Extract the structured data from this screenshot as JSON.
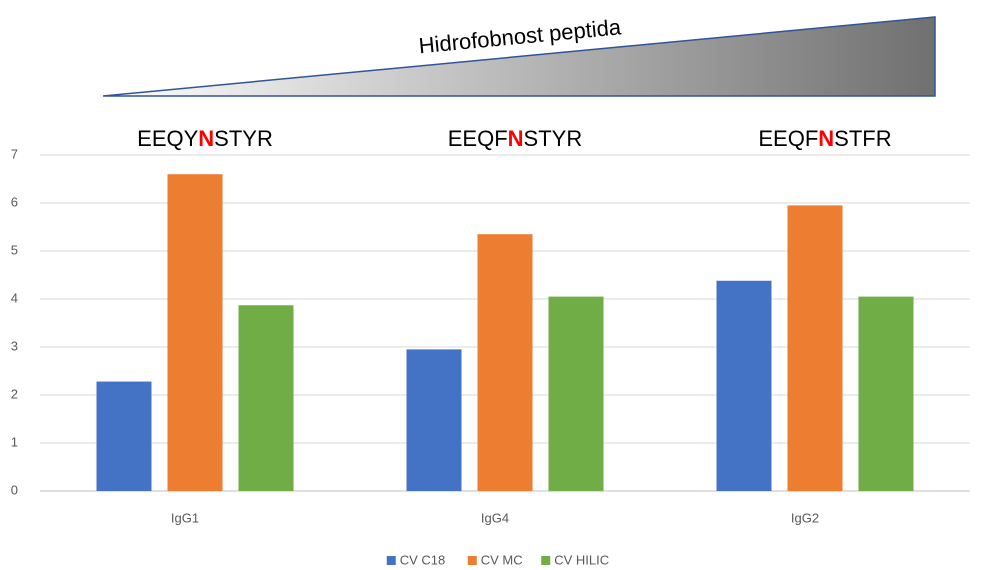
{
  "chart_data": {
    "type": "bar",
    "annotation": "Hidrofobnost peptida",
    "peptides": [
      [
        "EEQY",
        "N",
        "STYR"
      ],
      [
        "EEQF",
        "N",
        "STYR"
      ],
      [
        "EEQF",
        "N",
        "STFR"
      ]
    ],
    "categories": [
      "IgG1",
      "IgG4",
      "IgG2"
    ],
    "series": [
      {
        "name": "CV C18",
        "color": "#4472c4",
        "values": [
          2.28,
          2.95,
          4.38
        ]
      },
      {
        "name": "CV MC",
        "color": "#ed7d31",
        "values": [
          6.6,
          5.35,
          5.95
        ]
      },
      {
        "name": "CV HILIC",
        "color": "#70ad47",
        "values": [
          3.87,
          4.05,
          4.05
        ]
      }
    ],
    "ylim": [
      0,
      7
    ],
    "yticks": [
      0,
      1,
      2,
      3,
      4,
      5,
      6,
      7
    ],
    "grid": true,
    "legend": "bottom"
  }
}
